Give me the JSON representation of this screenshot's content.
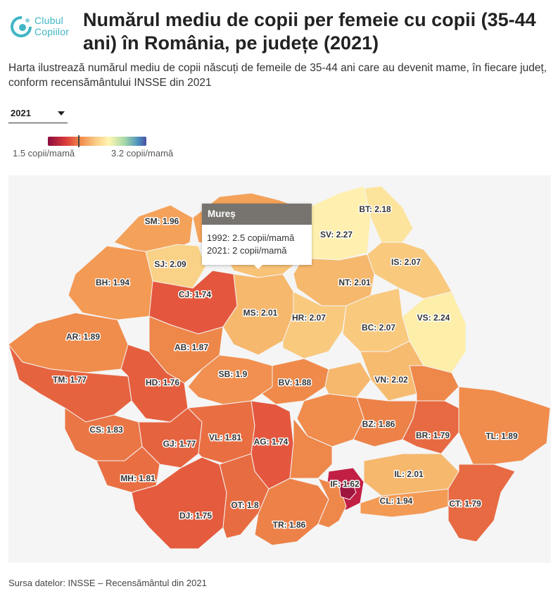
{
  "brand": {
    "name_line1": "Clubul",
    "name_line2": "Copiilor",
    "color": "#3fb6c4"
  },
  "title": "Numărul mediu de copii per femeie cu copii (35-44 ani) în România, pe județe (2021)",
  "subtitle": "Harta ilustrează numărul mediu de copii născuți de femeile de 35-44 ani care au devenit mame, în fiecare județ, conform recensământului INSSE din 2021",
  "year_select": {
    "value": "2021",
    "icon": "chevron-down-icon"
  },
  "legend": {
    "min_label": "1.5 copii/mamă",
    "max_label": "3.2 copii/mamă",
    "min_value": 1.5,
    "max_value": 3.2,
    "marker_value": 2.0
  },
  "tooltip": {
    "county": "Mureș",
    "line_1992": "1992: 2.5 copii/mamă",
    "line_2021": "2021: 2 copii/mamă"
  },
  "source": "Sursa datelor: INSSE – Recensământul din 2021",
  "counties": [
    {
      "code": "SM",
      "label": "SM: 1.96",
      "value": 1.96,
      "color": "#f4a25a"
    },
    {
      "code": "SJ",
      "label": "SJ: 2.09",
      "value": 2.09,
      "color": "#fad287"
    },
    {
      "code": "BH",
      "label": "BH: 1.94",
      "value": 1.94,
      "color": "#f39a55"
    },
    {
      "code": "CJ",
      "label": "CJ: 1.74",
      "value": 1.74,
      "color": "#e4573e"
    },
    {
      "code": "AR",
      "label": "AR: 1.89",
      "value": 1.89,
      "color": "#f08c4c"
    },
    {
      "code": "AB",
      "label": "AB: 1.87",
      "value": 1.87,
      "color": "#ee874a"
    },
    {
      "code": "MS",
      "label": "MS: 2.01",
      "value": 2.01,
      "color": "#f6b86d"
    },
    {
      "code": "HR",
      "label": "HR: 2.07",
      "value": 2.07,
      "color": "#f9c97e"
    },
    {
      "code": "NT",
      "label": "NT: 2.01",
      "value": 2.01,
      "color": "#f6b86d"
    },
    {
      "code": "IS",
      "label": "IS: 2.07",
      "value": 2.07,
      "color": "#f9c97e"
    },
    {
      "code": "BT",
      "label": "BT: 2.18",
      "value": 2.18,
      "color": "#fde49c"
    },
    {
      "code": "SV",
      "label": "SV: 2.27",
      "value": 2.27,
      "color": "#fff0b0"
    },
    {
      "code": "VS",
      "label": "VS: 2.24",
      "value": 2.24,
      "color": "#fdeea9"
    },
    {
      "code": "BC",
      "label": "BC: 2.07",
      "value": 2.07,
      "color": "#f9c97e"
    },
    {
      "code": "TM",
      "label": "TM: 1.77",
      "value": 1.77,
      "color": "#e66340"
    },
    {
      "code": "HD",
      "label": "HD: 1.76",
      "value": 1.76,
      "color": "#e55f3f"
    },
    {
      "code": "SB",
      "label": "SB: 1.9",
      "value": 1.9,
      "color": "#f19050"
    },
    {
      "code": "BV",
      "label": "BV: 1.88",
      "value": 1.88,
      "color": "#ef8a4b"
    },
    {
      "code": "VN",
      "label": "VN: 2.02",
      "value": 2.02,
      "color": "#f7bb70"
    },
    {
      "code": "CS",
      "label": "CS: 1.83",
      "value": 1.83,
      "color": "#ea7645"
    },
    {
      "code": "GJ",
      "label": "GJ: 1.77",
      "value": 1.77,
      "color": "#e66340"
    },
    {
      "code": "VL",
      "label": "VL: 1.81",
      "value": 1.81,
      "color": "#e96f43"
    },
    {
      "code": "AG",
      "label": "AG: 1.74",
      "value": 1.74,
      "color": "#e4573e"
    },
    {
      "code": "BZ",
      "label": "BZ: 1.86",
      "value": 1.86,
      "color": "#ed8249"
    },
    {
      "code": "BR",
      "label": "BR: 1.79",
      "value": 1.79,
      "color": "#e76a42"
    },
    {
      "code": "TL",
      "label": "TL: 1.89",
      "value": 1.89,
      "color": "#f08c4c"
    },
    {
      "code": "MH",
      "label": "MH: 1.81",
      "value": 1.81,
      "color": "#e96f43"
    },
    {
      "code": "DJ",
      "label": "DJ: 1.75",
      "value": 1.75,
      "color": "#e55b3e"
    },
    {
      "code": "OT",
      "label": "OT: 1.8",
      "value": 1.8,
      "color": "#e86c42"
    },
    {
      "code": "TR",
      "label": "TR: 1.86",
      "value": 1.86,
      "color": "#ed8249"
    },
    {
      "code": "IL",
      "label": "IL: 2.01",
      "value": 2.01,
      "color": "#f6b86d"
    },
    {
      "code": "CL",
      "label": "CL: 1.94",
      "value": 1.94,
      "color": "#f39a55"
    },
    {
      "code": "CT",
      "label": "CT: 1.79",
      "value": 1.79,
      "color": "#e76a42"
    },
    {
      "code": "IF",
      "label": "IF: 1.62",
      "value": 1.62,
      "color": "#c21f45"
    },
    {
      "code": "MM",
      "label": "",
      "value": null,
      "color": "#f4a25a"
    },
    {
      "code": "BN",
      "label": "",
      "value": null,
      "color": "#f8c277"
    },
    {
      "code": "CV",
      "label": "",
      "value": null,
      "color": "#f6b86d"
    },
    {
      "code": "PH",
      "label": "",
      "value": null,
      "color": "#f08c4c"
    },
    {
      "code": "DB",
      "label": "",
      "value": null,
      "color": "#ee874a"
    },
    {
      "code": "GR",
      "label": "",
      "value": null,
      "color": "#ee874a"
    },
    {
      "code": "GL",
      "label": "",
      "value": null,
      "color": "#ee874a"
    },
    {
      "code": "B",
      "label": "",
      "value": null,
      "color": "#a0153e"
    }
  ]
}
